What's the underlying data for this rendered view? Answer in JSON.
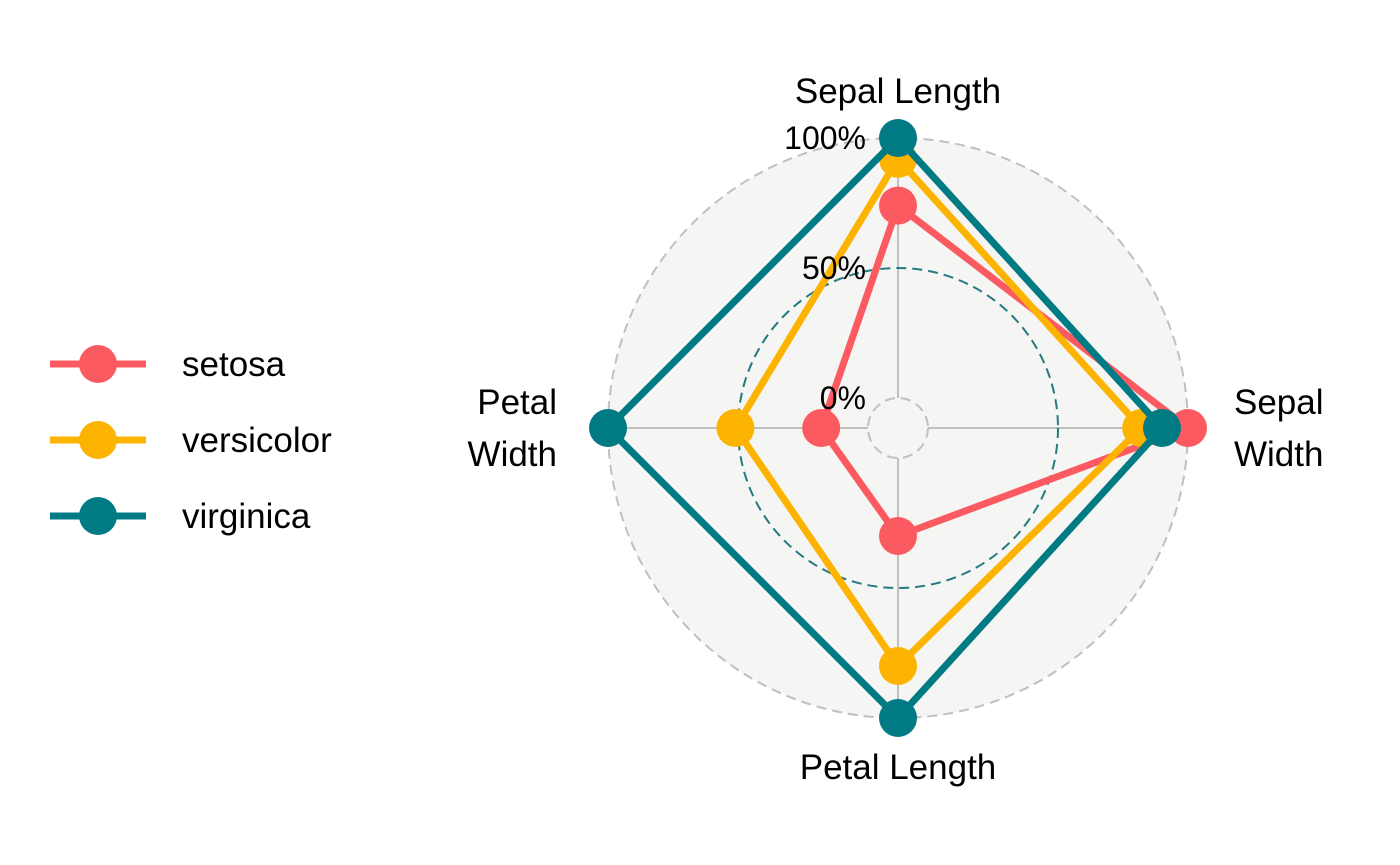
{
  "chart_data": {
    "type": "radar",
    "axes": [
      "Sepal Length",
      "Sepal Width",
      "Petal Length",
      "Petal Width"
    ],
    "axis_label_lines": [
      [
        "Sepal Length"
      ],
      [
        "Sepal",
        "Width"
      ],
      [
        "Petal Length"
      ],
      [
        "Petal",
        "Width"
      ]
    ],
    "grid_levels": [
      {
        "value": 0,
        "label": "0%"
      },
      {
        "value": 50,
        "label": "50%"
      },
      {
        "value": 100,
        "label": "100%"
      }
    ],
    "range": [
      0,
      100
    ],
    "background_color": "#f5f5f3",
    "gridline_colors": {
      "outer": "#c0c0c0",
      "mid": "#237a80",
      "inner": "#c0c0c0",
      "axis": "#c0c0c0"
    },
    "legend_position": "left",
    "series": [
      {
        "name": "setosa",
        "color": "#fc5a61",
        "values": [
          74,
          100,
          30,
          18
        ]
      },
      {
        "name": "versicolor",
        "color": "#fcb400",
        "values": [
          92,
          82,
          80,
          51
        ]
      },
      {
        "name": "virginica",
        "color": "#007b84",
        "values": [
          100,
          90,
          100,
          100
        ]
      }
    ]
  }
}
